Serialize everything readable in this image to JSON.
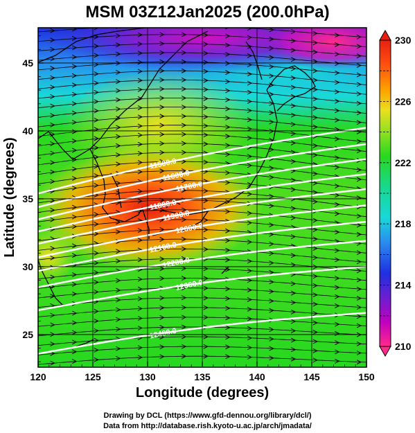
{
  "title": "MSM 03Z12Jan2025 (200.0hPa)",
  "x_axis": {
    "label": "Longitude (degrees)",
    "ticks": [
      "120",
      "125",
      "130",
      "135",
      "140",
      "145",
      "150"
    ],
    "range": [
      120,
      150
    ]
  },
  "y_axis": {
    "label": "Latitude  (degrees)",
    "ticks": [
      "25",
      "30",
      "35",
      "40",
      "45"
    ],
    "range": [
      22.6,
      47.6
    ]
  },
  "colorbar": {
    "labels": [
      "230",
      "226",
      "222",
      "218",
      "214",
      "210"
    ],
    "range": [
      210,
      230
    ],
    "colors": [
      "#ff2a8a",
      "#c000c0",
      "#6a1fd0",
      "#2030e0",
      "#2a8cf0",
      "#19d8d8",
      "#18d890",
      "#27d820",
      "#90e020",
      "#e8e020",
      "#ffa000",
      "#ff5010",
      "#e82010"
    ]
  },
  "contours": [
    {
      "label": "11500.0",
      "lat": 35.9
    },
    {
      "label": "11600.0",
      "lat": 34.9
    },
    {
      "label": "11700.0",
      "lat": 34.0
    },
    {
      "label": "11800.0",
      "lat": 33.1
    },
    {
      "label": "11900.0",
      "lat": 32.2
    },
    {
      "label": "12000.0",
      "lat": 31.2
    },
    {
      "label": "12100.0",
      "lat": 30.2
    },
    {
      "label": "12200.0",
      "lat": 29.0
    },
    {
      "label": "12300.0",
      "lat": 27.3
    },
    {
      "label": "12400.0",
      "lat": 24.1
    }
  ],
  "credits": [
    "Drawing by DCL (https://www.gfd-dennou.org/library/dcl/)",
    "Data from http://database.rish.kyoto-u.ac.jp/arch/jmadata/"
  ]
}
